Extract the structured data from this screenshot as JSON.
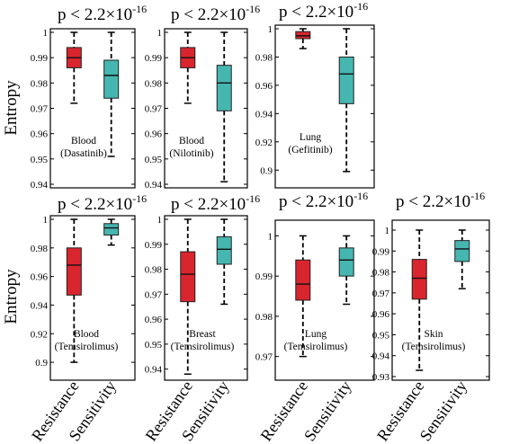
{
  "figure": {
    "ylabel": "Entropy",
    "categories": [
      "Resistance",
      "Sensitivity"
    ],
    "colors": {
      "resistance": "#d9252e",
      "sensitivity": "#46b6b0"
    }
  },
  "chart_data": [
    {
      "type": "box",
      "title": "p < 2.2×10-16",
      "title_base": "p < 2.2×10",
      "title_exp": "-16",
      "annotation": [
        "Blood",
        "(Dasatinib)"
      ],
      "ylabel": "Entropy",
      "ylim": [
        0.94,
        1.0
      ],
      "yticks": [
        "0.94",
        "0.95",
        "0.96",
        "0.97",
        "0.98",
        "0.99",
        "1"
      ],
      "categories": [
        "Resistance",
        "Sensitivity"
      ],
      "series": [
        {
          "name": "Resistance",
          "whisker_low": 0.972,
          "q1": 0.986,
          "median": 0.99,
          "q3": 0.994,
          "whisker_high": 1.0
        },
        {
          "name": "Sensitivity",
          "whisker_low": 0.951,
          "q1": 0.974,
          "median": 0.983,
          "q3": 0.989,
          "whisker_high": 1.0
        }
      ]
    },
    {
      "type": "box",
      "title": "p < 2.2×10-16",
      "title_base": "p < 2.2×10",
      "title_exp": "-16",
      "annotation": [
        "Blood",
        "(Nilotinib)"
      ],
      "ylabel": "",
      "ylim": [
        0.94,
        1.0
      ],
      "yticks": [
        "0.94",
        "0.95",
        "0.96",
        "0.97",
        "0.98",
        "0.99",
        "1"
      ],
      "categories": [
        "Resistance",
        "Sensitivity"
      ],
      "series": [
        {
          "name": "Resistance",
          "whisker_low": 0.972,
          "q1": 0.986,
          "median": 0.99,
          "q3": 0.994,
          "whisker_high": 1.0
        },
        {
          "name": "Sensitivity",
          "whisker_low": 0.941,
          "q1": 0.969,
          "median": 0.98,
          "q3": 0.987,
          "whisker_high": 1.0
        }
      ]
    },
    {
      "type": "box",
      "title": "p < 2.2×10-16",
      "title_base": "p < 2.2×10",
      "title_exp": "-16",
      "annotation": [
        "Lung",
        "(Gefitinib)"
      ],
      "ylabel": "",
      "ylim": [
        0.89,
        1.0
      ],
      "yticks": [
        "0.9",
        "0.92",
        "0.94",
        "0.96",
        "0.98",
        "1"
      ],
      "categories": [
        "Resistance",
        "Sensitivity"
      ],
      "series": [
        {
          "name": "Resistance",
          "whisker_low": 0.986,
          "q1": 0.993,
          "median": 0.995,
          "q3": 0.998,
          "whisker_high": 1.0
        },
        {
          "name": "Sensitivity",
          "whisker_low": 0.899,
          "q1": 0.947,
          "median": 0.968,
          "q3": 0.98,
          "whisker_high": 1.0
        }
      ]
    },
    {
      "type": "box",
      "title": "p < 2.2×10-16",
      "title_base": "p < 2.2×10",
      "title_exp": "-16",
      "annotation": [
        "Blood",
        "(Temsirolimus)"
      ],
      "ylabel": "Entropy",
      "ylim": [
        0.89,
        1.0
      ],
      "yticks": [
        "0.9",
        "0.92",
        "0.94",
        "0.96",
        "0.98",
        "1"
      ],
      "categories": [
        "Resistance",
        "Sensitivity"
      ],
      "series": [
        {
          "name": "Resistance",
          "whisker_low": 0.9,
          "q1": 0.947,
          "median": 0.968,
          "q3": 0.98,
          "whisker_high": 1.0
        },
        {
          "name": "Sensitivity",
          "whisker_low": 0.982,
          "q1": 0.989,
          "median": 0.994,
          "q3": 0.997,
          "whisker_high": 1.0
        }
      ]
    },
    {
      "type": "box",
      "title": "p < 2.2×10-16",
      "title_base": "p < 2.2×10",
      "title_exp": "-16",
      "annotation": [
        "Breast",
        "(Temsirolimus)"
      ],
      "ylabel": "",
      "ylim": [
        0.937,
        1.0
      ],
      "yticks": [
        "0.94",
        "0.95",
        "0.96",
        "0.97",
        "0.98",
        "0.99",
        "1"
      ],
      "categories": [
        "Resistance",
        "Sensitivity"
      ],
      "series": [
        {
          "name": "Resistance",
          "whisker_low": 0.938,
          "q1": 0.967,
          "median": 0.978,
          "q3": 0.987,
          "whisker_high": 1.0
        },
        {
          "name": "Sensitivity",
          "whisker_low": 0.966,
          "q1": 0.982,
          "median": 0.988,
          "q3": 0.993,
          "whisker_high": 1.0
        }
      ]
    },
    {
      "type": "box",
      "title": "p < 2.2×10-16",
      "title_base": "p < 2.2×10",
      "title_exp": "-16",
      "annotation": [
        "Lung",
        "(Temsirolimus)"
      ],
      "ylabel": "",
      "ylim": [
        0.965,
        1.003
      ],
      "yticks": [
        "0.97",
        "0.98",
        "0.99",
        "1"
      ],
      "categories": [
        "Resistance",
        "Sensitivity"
      ],
      "series": [
        {
          "name": "Resistance",
          "whisker_low": 0.97,
          "q1": 0.984,
          "median": 0.988,
          "q3": 0.994,
          "whisker_high": 1.0
        },
        {
          "name": "Sensitivity",
          "whisker_low": 0.983,
          "q1": 0.99,
          "median": 0.994,
          "q3": 0.997,
          "whisker_high": 1.0
        }
      ]
    },
    {
      "type": "box",
      "title": "p < 2.2×10-16",
      "title_base": "p < 2.2×10",
      "title_exp": "-16",
      "annotation": [
        "Skin",
        "(Temsirolimus)"
      ],
      "ylabel": "",
      "ylim": [
        0.93,
        1.003
      ],
      "yticks": [
        "0.93",
        "0.94",
        "0.95",
        "0.96",
        "0.97",
        "0.98",
        "0.99",
        "1"
      ],
      "categories": [
        "Resistance",
        "Sensitivity"
      ],
      "series": [
        {
          "name": "Resistance",
          "whisker_low": 0.933,
          "q1": 0.967,
          "median": 0.977,
          "q3": 0.986,
          "whisker_high": 1.0
        },
        {
          "name": "Sensitivity",
          "whisker_low": 0.972,
          "q1": 0.985,
          "median": 0.991,
          "q3": 0.995,
          "whisker_high": 1.0
        }
      ]
    }
  ]
}
